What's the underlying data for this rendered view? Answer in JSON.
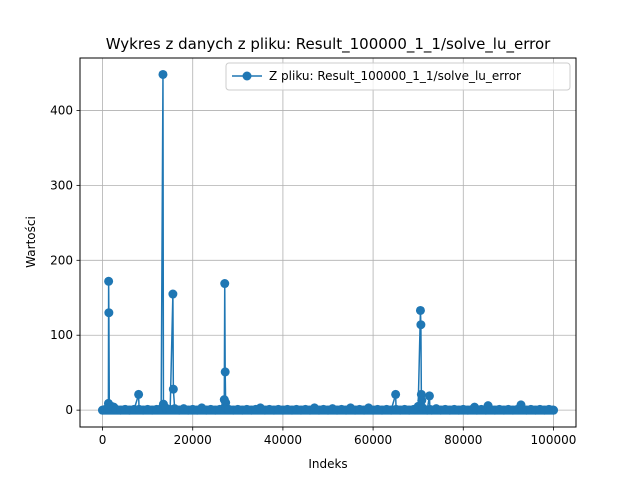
{
  "chart_data": {
    "type": "line",
    "title": "Wykres z danych z pliku: Result_100000_1_1/solve_lu_error",
    "xlabel": "Indeks",
    "ylabel": "Wartości",
    "xlim": [
      -5000,
      105000
    ],
    "ylim": [
      -22.5,
      470
    ],
    "xticks": [
      0,
      20000,
      40000,
      60000,
      80000,
      100000
    ],
    "yticks": [
      0,
      100,
      200,
      300,
      400
    ],
    "grid": true,
    "legend_position": "top-right",
    "color": "#1f77b4",
    "series": [
      {
        "name": "Z pliku: Result_100000_1_1/solve_lu_error",
        "points": [
          [
            0,
            0
          ],
          [
            600,
            1
          ],
          [
            1200,
            2
          ],
          [
            1300,
            9
          ],
          [
            1350,
            172
          ],
          [
            1400,
            130
          ],
          [
            1500,
            3
          ],
          [
            2000,
            5
          ],
          [
            2500,
            4
          ],
          [
            3000,
            1
          ],
          [
            4000,
            0
          ],
          [
            5000,
            1
          ],
          [
            6000,
            0
          ],
          [
            7000,
            1
          ],
          [
            8000,
            21
          ],
          [
            8100,
            1
          ],
          [
            9000,
            0
          ],
          [
            10000,
            1
          ],
          [
            11000,
            0
          ],
          [
            12000,
            1
          ],
          [
            13000,
            2
          ],
          [
            13400,
            448
          ],
          [
            13500,
            8
          ],
          [
            14000,
            3
          ],
          [
            15000,
            1
          ],
          [
            15600,
            155
          ],
          [
            15700,
            28
          ],
          [
            16000,
            2
          ],
          [
            17000,
            0
          ],
          [
            18000,
            2
          ],
          [
            19000,
            0
          ],
          [
            20000,
            1
          ],
          [
            21000,
            0
          ],
          [
            22000,
            3
          ],
          [
            23000,
            0
          ],
          [
            24000,
            1
          ],
          [
            25000,
            0
          ],
          [
            26000,
            1
          ],
          [
            27000,
            14
          ],
          [
            27100,
            169
          ],
          [
            27200,
            51
          ],
          [
            27300,
            10
          ],
          [
            27400,
            3
          ],
          [
            28000,
            1
          ],
          [
            29000,
            0
          ],
          [
            30000,
            1
          ],
          [
            31000,
            0
          ],
          [
            32000,
            1
          ],
          [
            33000,
            0
          ],
          [
            34000,
            1
          ],
          [
            35000,
            3
          ],
          [
            36000,
            0
          ],
          [
            37000,
            1
          ],
          [
            38000,
            0
          ],
          [
            39000,
            1
          ],
          [
            40000,
            0
          ],
          [
            41000,
            1
          ],
          [
            42000,
            0
          ],
          [
            43000,
            1
          ],
          [
            44000,
            0
          ],
          [
            45000,
            1
          ],
          [
            46000,
            0
          ],
          [
            47000,
            3
          ],
          [
            48000,
            0
          ],
          [
            49000,
            1
          ],
          [
            50000,
            0
          ],
          [
            51000,
            2
          ],
          [
            52000,
            0
          ],
          [
            53000,
            1
          ],
          [
            54000,
            0
          ],
          [
            55000,
            3
          ],
          [
            56000,
            0
          ],
          [
            57000,
            1
          ],
          [
            58000,
            0
          ],
          [
            59000,
            3
          ],
          [
            60000,
            0
          ],
          [
            61000,
            1
          ],
          [
            62000,
            0
          ],
          [
            63000,
            1
          ],
          [
            64000,
            0
          ],
          [
            65000,
            21
          ],
          [
            65100,
            1
          ],
          [
            66000,
            0
          ],
          [
            67000,
            1
          ],
          [
            68000,
            0
          ],
          [
            69000,
            1
          ],
          [
            70000,
            5
          ],
          [
            70500,
            133
          ],
          [
            70600,
            114
          ],
          [
            70700,
            21
          ],
          [
            70800,
            13
          ],
          [
            71000,
            3
          ],
          [
            72000,
            0
          ],
          [
            72500,
            19
          ],
          [
            72600,
            1
          ],
          [
            73000,
            0
          ],
          [
            74000,
            2
          ],
          [
            75000,
            0
          ],
          [
            76000,
            1
          ],
          [
            77000,
            0
          ],
          [
            78000,
            1
          ],
          [
            79000,
            0
          ],
          [
            80000,
            1
          ],
          [
            81000,
            0
          ],
          [
            82000,
            1
          ],
          [
            82500,
            4
          ],
          [
            83000,
            0
          ],
          [
            84000,
            1
          ],
          [
            85000,
            0
          ],
          [
            85500,
            6
          ],
          [
            86000,
            1
          ],
          [
            87000,
            0
          ],
          [
            88000,
            1
          ],
          [
            89000,
            0
          ],
          [
            90000,
            1
          ],
          [
            91000,
            0
          ],
          [
            92000,
            1
          ],
          [
            92800,
            7
          ],
          [
            93000,
            1
          ],
          [
            94000,
            0
          ],
          [
            95000,
            1
          ],
          [
            96000,
            0
          ],
          [
            97000,
            1
          ],
          [
            98000,
            0
          ],
          [
            99000,
            1
          ],
          [
            100000,
            0
          ]
        ]
      }
    ]
  }
}
